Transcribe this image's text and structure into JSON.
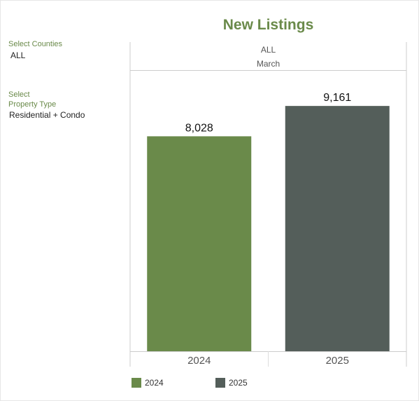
{
  "title": "New Listings",
  "filters": {
    "counties": {
      "label": "Select Counties",
      "value": "ALL"
    },
    "property_type": {
      "label_line1": "Select",
      "label_line2": "Property Type",
      "value": "Residential + Condo"
    }
  },
  "header": {
    "county": "ALL",
    "month": "March"
  },
  "colors": {
    "y2024": "#6a8a4a",
    "y2025": "#545e5a",
    "accent": "#6a8a4a"
  },
  "chart_data": {
    "type": "bar",
    "title": "New Listings",
    "categories": [
      "2024",
      "2025"
    ],
    "values": [
      8028,
      9161
    ],
    "data_labels": [
      "8,028",
      "9,161"
    ],
    "ylim": [
      0,
      10500
    ],
    "grid": false,
    "legend": {
      "placement": "bottom-left",
      "entries": [
        "2024",
        "2025"
      ]
    }
  }
}
